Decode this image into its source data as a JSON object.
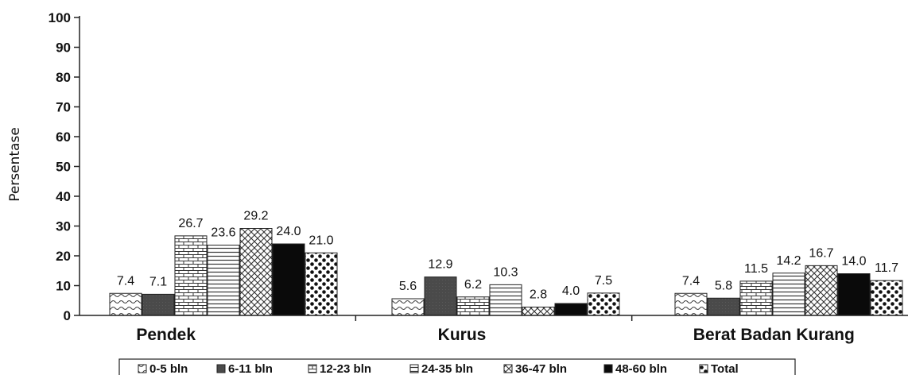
{
  "chart_data": {
    "type": "bar",
    "ylabel": "Persentase",
    "ylim": [
      0,
      100
    ],
    "yticks": [
      "0",
      "10",
      "20",
      "30",
      "40",
      "50",
      "60",
      "70",
      "80",
      "90",
      "100"
    ],
    "categories": [
      "Pendek",
      "Kurus",
      "Berat Badan Kurang"
    ],
    "series": [
      {
        "name": "0-5 bln",
        "values": [
          7.4,
          5.6,
          7.4
        ],
        "labels": [
          "7.4",
          "5.6",
          "7.4"
        ],
        "pattern": "wave"
      },
      {
        "name": "6-11 bln",
        "values": [
          7.1,
          12.9,
          5.8
        ],
        "labels": [
          "7.1",
          "12.9",
          "5.8"
        ],
        "pattern": "dark"
      },
      {
        "name": "12-23 bln",
        "values": [
          26.7,
          6.2,
          11.5
        ],
        "labels": [
          "26.7",
          "6.2",
          "11.5"
        ],
        "pattern": "brick"
      },
      {
        "name": "24-35 bln",
        "values": [
          23.6,
          10.3,
          14.2
        ],
        "labels": [
          "23.6",
          "10.3",
          "14.2"
        ],
        "pattern": "hlines"
      },
      {
        "name": "36-47 bln",
        "values": [
          29.2,
          2.8,
          16.7
        ],
        "labels": [
          "29.2",
          "2.8",
          "16.7"
        ],
        "pattern": "crosshatch"
      },
      {
        "name": "48-60 bln",
        "values": [
          24.0,
          4.0,
          14.0
        ],
        "labels": [
          "24.0",
          "4.0",
          "14.0"
        ],
        "pattern": "black"
      },
      {
        "name": "Total",
        "values": [
          21.0,
          7.5,
          11.7
        ],
        "labels": [
          "21.0",
          "7.5",
          "11.7"
        ],
        "pattern": "dots"
      }
    ],
    "legend_position": "bottom",
    "grid": false
  }
}
